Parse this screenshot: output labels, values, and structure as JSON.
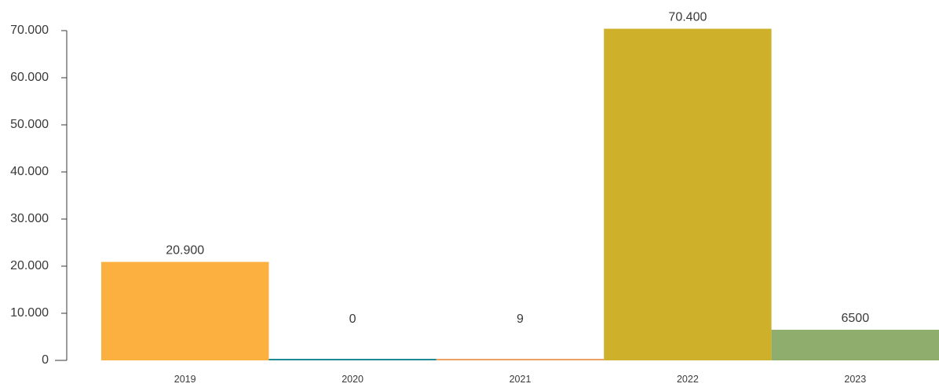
{
  "chart_data": {
    "type": "bar",
    "title": "",
    "xlabel": "",
    "ylabel": "",
    "categories": [
      "2019",
      "2020",
      "2021",
      "2022",
      "2023"
    ],
    "values": [
      20900,
      0,
      9,
      70400,
      6500
    ],
    "data_labels": [
      "20.900",
      "0",
      "9",
      "70.400",
      "6500"
    ],
    "colors": [
      "#fbb040",
      "#1f8a96",
      "#f0a160",
      "#cfb02a",
      "#8fae6e"
    ],
    "ylim": [
      0,
      70000
    ],
    "yticks": [
      0,
      10000,
      20000,
      30000,
      40000,
      50000,
      60000,
      70000
    ],
    "ytick_labels": [
      "0",
      "10.000",
      "20.000",
      "30.000",
      "40.000",
      "50.000",
      "60.000",
      "70.000"
    ],
    "grid": false,
    "legend": "none"
  }
}
